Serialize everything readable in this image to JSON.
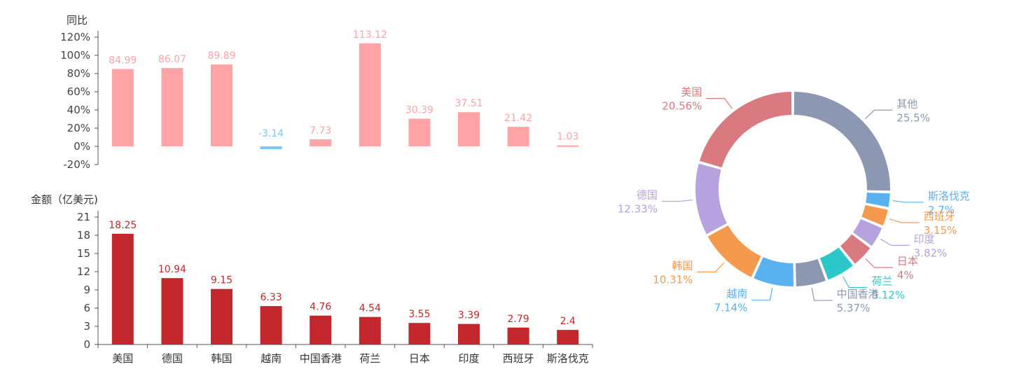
{
  "chart_data": [
    {
      "type": "bar",
      "ylabel": "同比",
      "categories": [
        "美国",
        "德国",
        "韩国",
        "越南",
        "中国香港",
        "荷兰",
        "日本",
        "印度",
        "西班牙",
        "斯洛伐克"
      ],
      "values": [
        84.99,
        86.07,
        89.89,
        -3.14,
        7.73,
        113.12,
        30.39,
        37.51,
        21.42,
        1.03
      ],
      "ylim": [
        -20,
        120
      ],
      "yticks": [
        "120%",
        "100%",
        "80%",
        "60%",
        "40%",
        "20%",
        "0%",
        "-20%"
      ],
      "colors": {
        "positive": "#ffa3a6",
        "negative": "#7fc7f5"
      }
    },
    {
      "type": "bar",
      "ylabel": "金额（亿美元)",
      "categories": [
        "美国",
        "德国",
        "韩国",
        "越南",
        "中国香港",
        "荷兰",
        "日本",
        "印度",
        "西班牙",
        "斯洛伐克"
      ],
      "values": [
        18.25,
        10.94,
        9.15,
        6.33,
        4.76,
        4.54,
        3.55,
        3.39,
        2.79,
        2.4
      ],
      "ylim": [
        0,
        21
      ],
      "yticks": [
        "21",
        "18",
        "15",
        "12",
        "9",
        "6",
        "3",
        "0"
      ],
      "colors": {
        "bar": "#c1272d"
      }
    },
    {
      "type": "pie",
      "slices": [
        {
          "name": "其他",
          "value": 25.5,
          "label": "25.5%",
          "color": "#8c97b2"
        },
        {
          "name": "斯洛伐克",
          "value": 2.7,
          "label": "2.7%",
          "color": "#5ab1ef"
        },
        {
          "name": "西班牙",
          "value": 3.15,
          "label": "3.15%",
          "color": "#f5994e"
        },
        {
          "name": "印度",
          "value": 3.82,
          "label": "3.82%",
          "color": "#b6a2de"
        },
        {
          "name": "日本",
          "value": 4,
          "label": "4%",
          "color": "#d87a80"
        },
        {
          "name": "荷兰",
          "value": 5.12,
          "label": "5.12%",
          "color": "#2ec7c9"
        },
        {
          "name": "中国香港",
          "value": 5.37,
          "label": "5.37%",
          "color": "#8c97b2"
        },
        {
          "name": "越南",
          "value": 7.14,
          "label": "7.14%",
          "color": "#5ab1ef"
        },
        {
          "name": "韩国",
          "value": 10.31,
          "label": "10.31%",
          "color": "#f5994e"
        },
        {
          "name": "德国",
          "value": 12.33,
          "label": "12.33%",
          "color": "#b6a2de"
        },
        {
          "name": "美国",
          "value": 20.56,
          "label": "20.56%",
          "color": "#d87a80"
        }
      ]
    }
  ]
}
